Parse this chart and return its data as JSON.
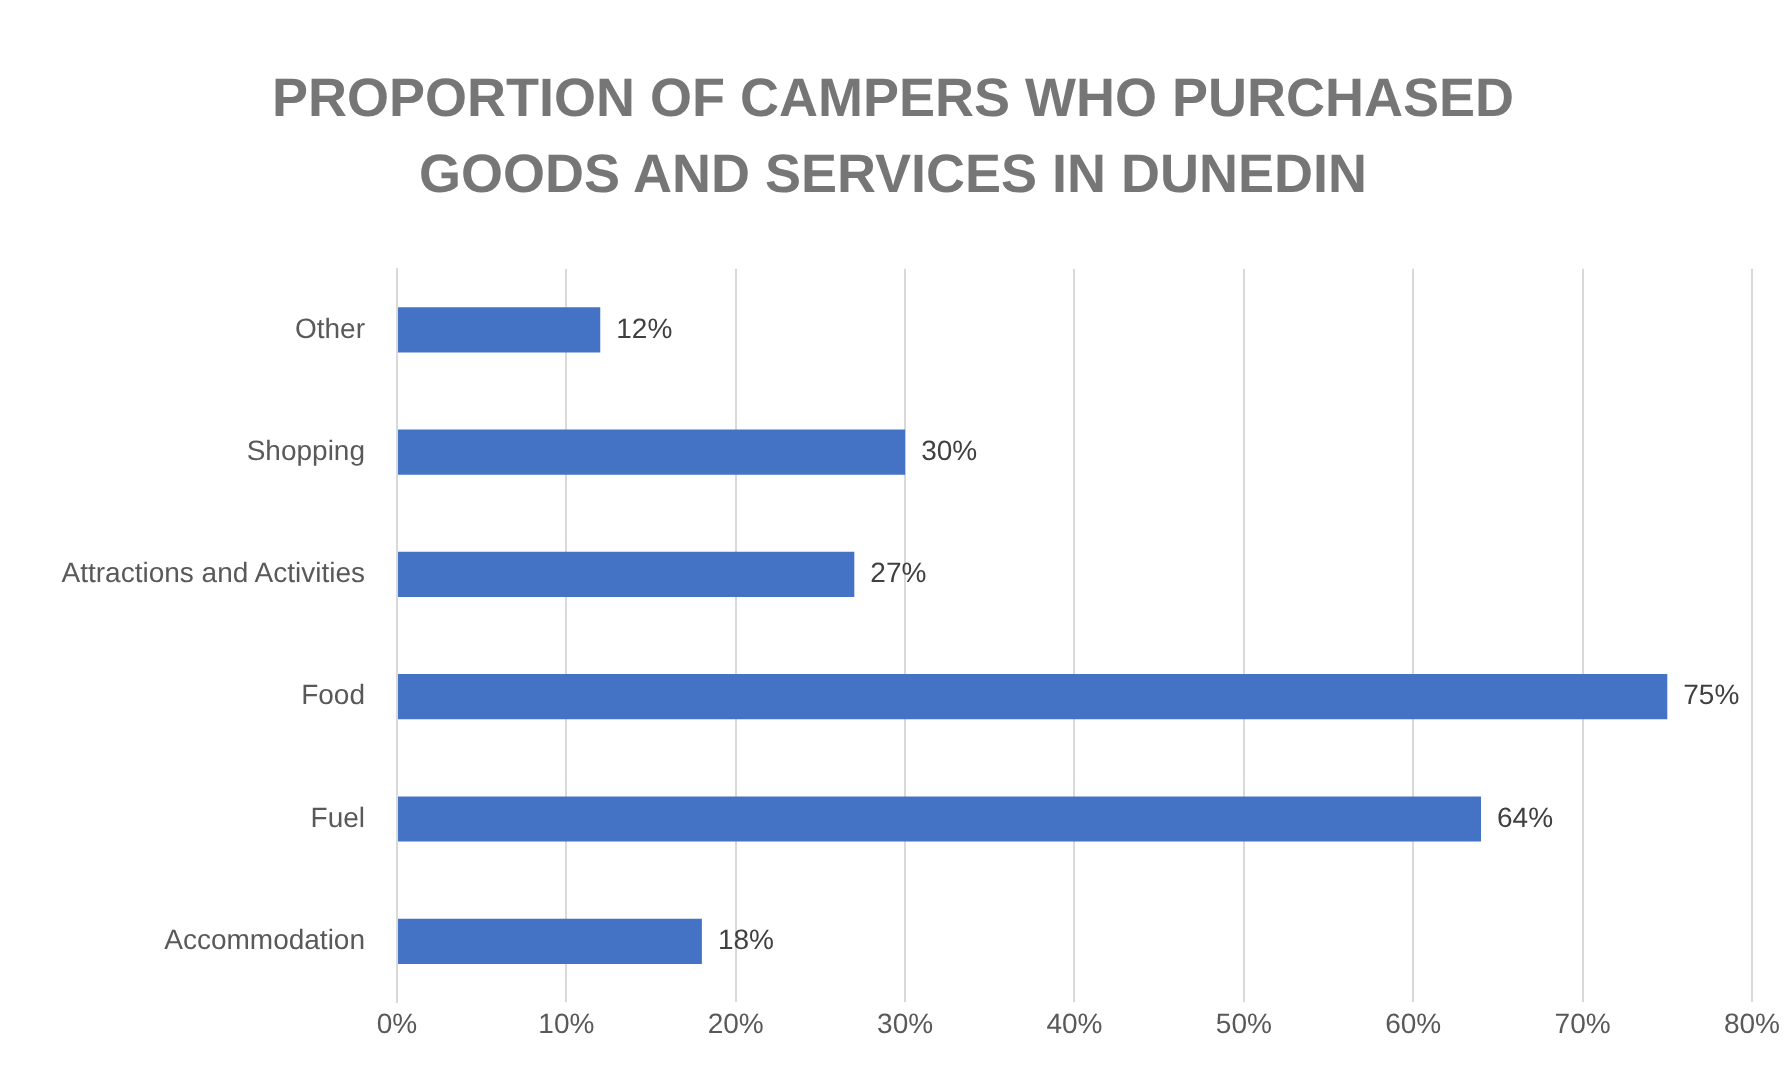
{
  "chart_data": {
    "type": "bar",
    "orientation": "horizontal",
    "title": "PROPORTION OF CAMPERS WHO PURCHASED GOODS AND SERVICES IN DUNEDIN",
    "categories": [
      "Other",
      "Shopping",
      "Attractions and Activities",
      "Food",
      "Fuel",
      "Accommodation"
    ],
    "values": [
      12,
      30,
      27,
      75,
      64,
      18
    ],
    "value_labels": [
      "12%",
      "30%",
      "27%",
      "75%",
      "64%",
      "18%"
    ],
    "color": "#4472c4",
    "xlim": [
      0,
      80
    ],
    "xticks": [
      {
        "value": 0,
        "label": "0%"
      },
      {
        "value": 10,
        "label": "10%"
      },
      {
        "value": 20,
        "label": "20%"
      },
      {
        "value": 30,
        "label": "30%"
      },
      {
        "value": 40,
        "label": "40%"
      },
      {
        "value": 50,
        "label": "50%"
      },
      {
        "value": 60,
        "label": "60%"
      },
      {
        "value": 70,
        "label": "70%"
      },
      {
        "value": 80,
        "label": "80%"
      }
    ],
    "grid": "x",
    "legend": false
  }
}
